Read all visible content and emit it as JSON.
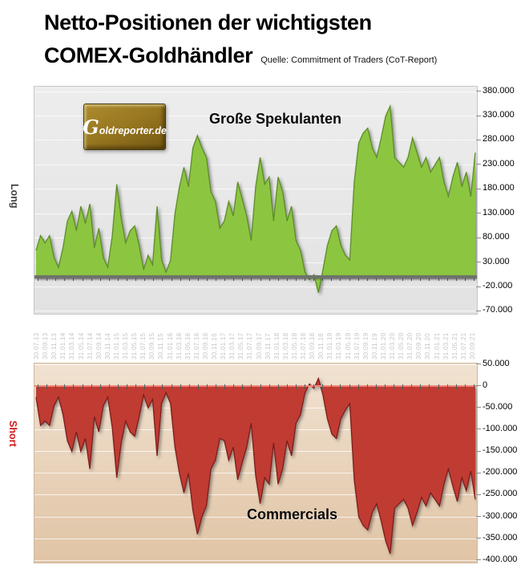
{
  "header": {
    "title_line1": "Netto-Positionen der wichtigsten",
    "title_line2": "COMEX-Goldhändler",
    "source": "Quelle: Commitment of Traders (CoT-Report)"
  },
  "watermark": "Goldreporter.de",
  "charts": {
    "top": {
      "inline_label": "Große Spekulanten",
      "side_label": "Long"
    },
    "bottom": {
      "inline_label": "Commercials",
      "side_label": "Short"
    }
  },
  "chart_data": [
    {
      "id": "speculators",
      "type": "area",
      "title": "Große Spekulanten",
      "side_label": "Long",
      "unit": "contracts (net position)",
      "x_resolution": "monthly, Jul 2013 – Sep 2021 (values estimated from chart)",
      "ylim": [
        -75000,
        390000
      ],
      "yticks": [
        380000,
        330000,
        280000,
        230000,
        180000,
        130000,
        80000,
        30000,
        -20000,
        -70000
      ],
      "ytick_labels": [
        "380.000",
        "330.000",
        "280.000",
        "230.000",
        "180.000",
        "130.000",
        "80.000",
        "30.000",
        "-20.000",
        "-70.000"
      ],
      "xtick_labels": [
        "30.07.13",
        "30.09.13",
        "30.11.13",
        "31.01.14",
        "31.03.14",
        "31.05.14",
        "31.07.14",
        "30.09.14",
        "30.11.14",
        "31.01.15",
        "31.03.15",
        "31.05.15",
        "31.07.15",
        "30.09.15",
        "30.11.15",
        "31.01.16",
        "31.03.16",
        "31.05.16",
        "31.07.16",
        "30.09.16",
        "30.11.16",
        "31.01.17",
        "31.03.17",
        "31.05.17",
        "31.07.17",
        "30.09.17",
        "30.11.17",
        "31.01.18",
        "31.03.18",
        "31.05.18",
        "31.07.18",
        "30.09.18",
        "30.11.18",
        "31.01.19",
        "31.03.19",
        "31.05.19",
        "31.07.19",
        "30.09.19",
        "30.11.19",
        "31.01.20",
        "31.03.20",
        "31.05.20",
        "31.07.20",
        "30.09.20",
        "30.11.20",
        "31.01.21",
        "31.03.21",
        "31.05.21",
        "31.07.21",
        "30.09.21"
      ],
      "fill_color": "#8CC63F",
      "edge_color": "#5d8c2b",
      "plot_bg": "#e8e8e8",
      "grid": true,
      "values": [
        55000,
        85000,
        70000,
        85000,
        40000,
        20000,
        60000,
        115000,
        135000,
        95000,
        145000,
        110000,
        150000,
        60000,
        100000,
        40000,
        20000,
        85000,
        190000,
        120000,
        70000,
        95000,
        105000,
        65000,
        15000,
        45000,
        25000,
        145000,
        35000,
        10000,
        35000,
        130000,
        185000,
        225000,
        185000,
        265000,
        290000,
        265000,
        245000,
        175000,
        155000,
        100000,
        115000,
        155000,
        125000,
        195000,
        160000,
        125000,
        75000,
        185000,
        245000,
        190000,
        205000,
        115000,
        205000,
        175000,
        115000,
        145000,
        75000,
        55000,
        10000,
        -5000,
        5000,
        -32000,
        15000,
        65000,
        95000,
        105000,
        65000,
        45000,
        35000,
        195000,
        275000,
        295000,
        305000,
        265000,
        245000,
        285000,
        330000,
        350000,
        245000,
        235000,
        225000,
        245000,
        285000,
        255000,
        225000,
        245000,
        215000,
        230000,
        245000,
        195000,
        165000,
        205000,
        235000,
        185000,
        215000,
        165000,
        255000
      ]
    },
    {
      "id": "commercials",
      "type": "area",
      "title": "Commercials",
      "side_label": "Short",
      "unit": "contracts (net position)",
      "x_resolution": "monthly, Jul 2013 – Sep 2021 (values estimated from chart)",
      "ylim": [
        -405000,
        52000
      ],
      "yticks": [
        50000,
        0,
        -50000,
        -100000,
        -150000,
        -200000,
        -250000,
        -300000,
        -350000,
        -400000
      ],
      "ytick_labels": [
        "50.000",
        "0",
        "-50.000",
        "-100.000",
        "-150.000",
        "-200.000",
        "-250.000",
        "-300.000",
        "-350.000",
        "-400.000"
      ],
      "xtick_labels": [],
      "fill_color": "#C03A31",
      "edge_color": "#7c1f1a",
      "plot_bg": "#ead5ba",
      "grid": true,
      "values": [
        -25000,
        -90000,
        -80000,
        -90000,
        -45000,
        -25000,
        -65000,
        -125000,
        -150000,
        -105000,
        -150000,
        -120000,
        -190000,
        -70000,
        -105000,
        -45000,
        -25000,
        -95000,
        -210000,
        -130000,
        -80000,
        -105000,
        -115000,
        -70000,
        -20000,
        -50000,
        -30000,
        -160000,
        -40000,
        -15000,
        -40000,
        -140000,
        -200000,
        -245000,
        -200000,
        -285000,
        -340000,
        -300000,
        -275000,
        -190000,
        -170000,
        -120000,
        -125000,
        -170000,
        -140000,
        -215000,
        -175000,
        -140000,
        -85000,
        -205000,
        -270000,
        -210000,
        -225000,
        -130000,
        -225000,
        -190000,
        -125000,
        -160000,
        -85000,
        -65000,
        -15000,
        5000,
        -5000,
        18000,
        -20000,
        -75000,
        -110000,
        -120000,
        -75000,
        -55000,
        -40000,
        -215000,
        -300000,
        -320000,
        -330000,
        -290000,
        -270000,
        -310000,
        -355000,
        -385000,
        -280000,
        -270000,
        -260000,
        -280000,
        -320000,
        -290000,
        -255000,
        -275000,
        -245000,
        -260000,
        -275000,
        -225000,
        -190000,
        -230000,
        -265000,
        -210000,
        -240000,
        -195000,
        -260000
      ]
    }
  ]
}
